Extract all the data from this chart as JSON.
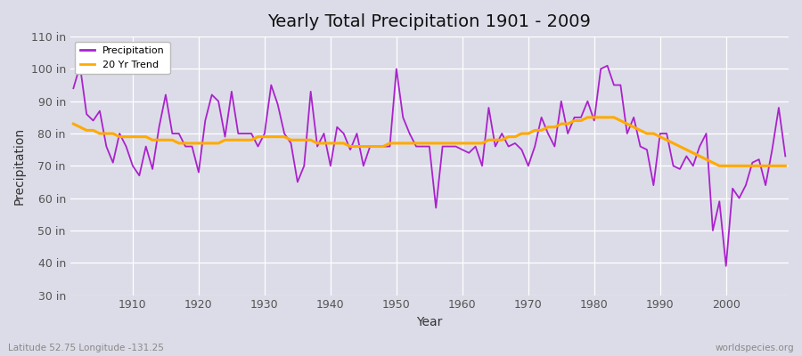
{
  "title": "Yearly Total Precipitation 1901 - 2009",
  "xlabel": "Year",
  "ylabel": "Precipitation",
  "subtitle_left": "Latitude 52.75 Longitude -131.25",
  "subtitle_right": "worldspecies.org",
  "bg_color": "#dcdce8",
  "plot_bg_color": "#dcdce8",
  "precip_color": "#aa22cc",
  "trend_color": "#ffaa00",
  "ylim": [
    30,
    110
  ],
  "yticks": [
    30,
    40,
    50,
    60,
    70,
    80,
    90,
    100,
    110
  ],
  "xticks": [
    1910,
    1920,
    1930,
    1940,
    1950,
    1960,
    1970,
    1980,
    1990,
    2000
  ],
  "years": [
    1901,
    1902,
    1903,
    1904,
    1905,
    1906,
    1907,
    1908,
    1909,
    1910,
    1911,
    1912,
    1913,
    1914,
    1915,
    1916,
    1917,
    1918,
    1919,
    1920,
    1921,
    1922,
    1923,
    1924,
    1925,
    1926,
    1927,
    1928,
    1929,
    1930,
    1931,
    1932,
    1933,
    1934,
    1935,
    1936,
    1937,
    1938,
    1939,
    1940,
    1941,
    1942,
    1943,
    1944,
    1945,
    1946,
    1947,
    1948,
    1949,
    1950,
    1951,
    1952,
    1953,
    1954,
    1955,
    1956,
    1957,
    1958,
    1959,
    1960,
    1961,
    1962,
    1963,
    1964,
    1965,
    1966,
    1967,
    1968,
    1969,
    1970,
    1971,
    1972,
    1973,
    1974,
    1975,
    1976,
    1977,
    1978,
    1979,
    1980,
    1981,
    1982,
    1983,
    1984,
    1985,
    1986,
    1987,
    1988,
    1989,
    1990,
    1991,
    1992,
    1993,
    1994,
    1995,
    1996,
    1997,
    1998,
    1999,
    2000,
    2001,
    2002,
    2003,
    2004,
    2005,
    2006,
    2007,
    2008,
    2009
  ],
  "precip": [
    94,
    101,
    86,
    84,
    87,
    76,
    71,
    80,
    76,
    70,
    67,
    76,
    69,
    82,
    92,
    80,
    80,
    76,
    76,
    68,
    84,
    92,
    90,
    79,
    93,
    80,
    80,
    80,
    76,
    80,
    95,
    89,
    80,
    77,
    65,
    70,
    93,
    76,
    80,
    70,
    82,
    80,
    75,
    80,
    70,
    76,
    76,
    76,
    76,
    100,
    85,
    80,
    76,
    76,
    76,
    57,
    76,
    76,
    76,
    75,
    74,
    76,
    70,
    88,
    76,
    80,
    76,
    77,
    75,
    70,
    76,
    85,
    80,
    76,
    90,
    80,
    85,
    85,
    90,
    84,
    100,
    101,
    95,
    95,
    80,
    85,
    76,
    75,
    64,
    80,
    80,
    70,
    69,
    73,
    70,
    76,
    80,
    50,
    59,
    39,
    63,
    60,
    64,
    71,
    72,
    64,
    75,
    88,
    73
  ],
  "trend": [
    83,
    82,
    81,
    81,
    80,
    80,
    80,
    79,
    79,
    79,
    79,
    79,
    78,
    78,
    78,
    78,
    77,
    77,
    77,
    77,
    77,
    77,
    77,
    78,
    78,
    78,
    78,
    78,
    79,
    79,
    79,
    79,
    79,
    78,
    78,
    78,
    78,
    77,
    77,
    77,
    77,
    77,
    76,
    76,
    76,
    76,
    76,
    76,
    77,
    77,
    77,
    77,
    77,
    77,
    77,
    77,
    77,
    77,
    77,
    77,
    77,
    77,
    77,
    78,
    78,
    78,
    79,
    79,
    80,
    80,
    81,
    81,
    82,
    82,
    83,
    83,
    84,
    84,
    85,
    85,
    85,
    85,
    85,
    84,
    83,
    82,
    81,
    80,
    80,
    79,
    78,
    77,
    76,
    75,
    74,
    73,
    72,
    71,
    70,
    70,
    70,
    70,
    70,
    70,
    70,
    70,
    70,
    70,
    70
  ],
  "legend_labels": [
    "Precipitation",
    "20 Yr Trend"
  ],
  "title_fontsize": 14,
  "label_fontsize": 9,
  "ylabel_fontsize": 10,
  "xlabel_fontsize": 10
}
